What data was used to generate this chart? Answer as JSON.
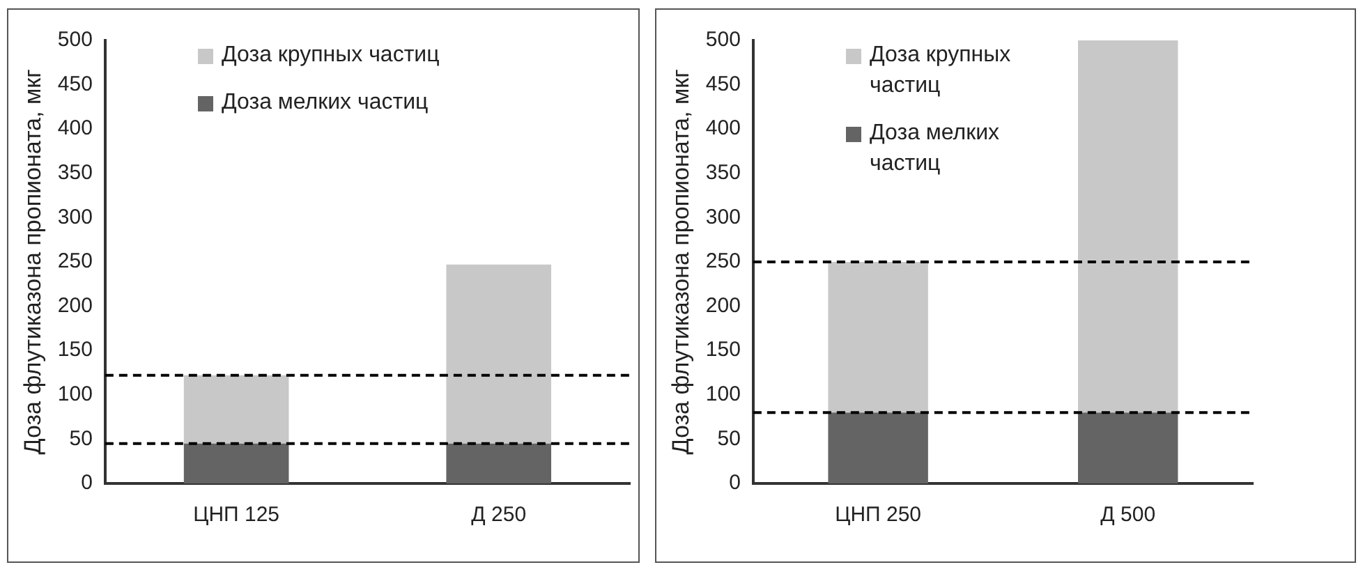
{
  "chart_data": [
    {
      "type": "bar",
      "stacked": true,
      "ylabel": "Доза флутиказона пропионата, мкг",
      "categories": [
        "ЦНП 125",
        "Д 250"
      ],
      "ylim": [
        0,
        500
      ],
      "yticks": [
        0,
        50,
        100,
        150,
        200,
        250,
        300,
        350,
        400,
        450,
        500
      ],
      "grid": false,
      "legend": "top left",
      "series": [
        {
          "name": "Доза мелких частиц",
          "color": "#646464",
          "values": [
            45,
            45
          ]
        },
        {
          "name": "Доза крупных частиц",
          "color": "#c8c8c8",
          "values": [
            77,
            202
          ]
        }
      ],
      "ref_lines": [
        {
          "axis": "y",
          "value": 122,
          "color": "#000000",
          "line_style": "dashed"
        },
        {
          "axis": "y",
          "value": 45,
          "color": "#000000",
          "line_style": "dashed"
        }
      ]
    },
    {
      "type": "bar",
      "stacked": true,
      "ylabel": "Доза флутиказона пропионата, мкг",
      "categories": [
        "ЦНП 250",
        "Д 500"
      ],
      "ylim": [
        0,
        500
      ],
      "yticks": [
        0,
        50,
        100,
        150,
        200,
        250,
        300,
        350,
        400,
        450,
        500
      ],
      "grid": false,
      "legend": "top left",
      "series": [
        {
          "name": "Доза мелких частиц",
          "color": "#646464",
          "values": [
            80,
            80
          ]
        },
        {
          "name": "Доза крупных частиц",
          "color": "#c8c8c8",
          "values": [
            170,
            420
          ]
        }
      ],
      "ref_lines": [
        {
          "axis": "y",
          "value": 250,
          "color": "#000000",
          "line_style": "dashed"
        },
        {
          "axis": "y",
          "value": 80,
          "color": "#000000",
          "line_style": "dashed"
        }
      ]
    }
  ]
}
